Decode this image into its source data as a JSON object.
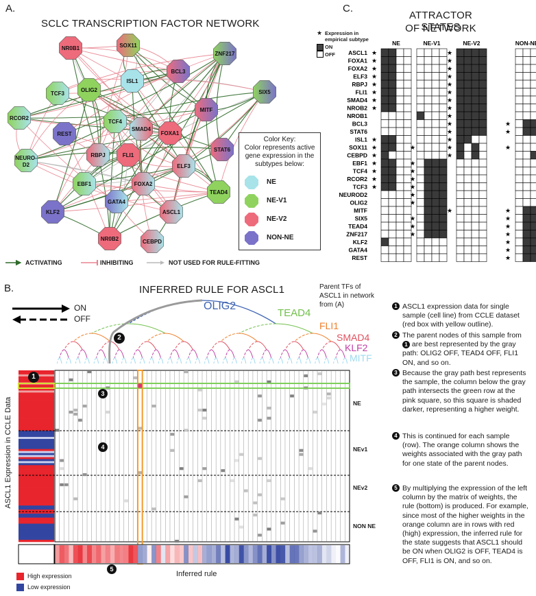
{
  "panelA": {
    "letter": "A.",
    "title": "SCLC TRANSCRIPTION FACTOR NETWORK",
    "colorKey": {
      "heading": "Color Key:",
      "description": "Color represents active gene expression in the subtypes below:",
      "entries": [
        {
          "label": "NE",
          "color": "#a8e3ea"
        },
        {
          "label": "NE-V1",
          "color": "#8fd35e"
        },
        {
          "label": "NE-V2",
          "color": "#ee6b7c"
        },
        {
          "label": "NON-NE",
          "color": "#7b73c9"
        }
      ]
    },
    "legend": {
      "activating": "ACTIVATING",
      "inhibiting": "INHIBITING",
      "unused": "NOT USED FOR RULE-FITTING"
    },
    "nodes": [
      "NR0B1",
      "SOX11",
      "ZNF217",
      "BCL3",
      "ISL1",
      "TCF3",
      "OLIG2",
      "SIX5",
      "RCOR2",
      "MITF",
      "REST",
      "TCF4",
      "SMAD4",
      "FOXA1",
      "STAT6",
      "NEURO-D2",
      "RBPJ",
      "FLI1",
      "ELF3",
      "EBF1",
      "FOXA2",
      "TEAD4",
      "GATA4",
      "ASCL1",
      "KLF2",
      "NR0B2",
      "CEBPD"
    ],
    "colors": {
      "activating": "#2f6b2a",
      "inhibiting": "#e8838f",
      "unused": "#b9b9b9"
    }
  },
  "panelC": {
    "letter": "C.",
    "title_line1": "ATTRACTOR STATES",
    "title_line2": "OF NETWORK",
    "legend": {
      "star_label": "Expression in empirical subtype",
      "on": "ON",
      "off": "OFF"
    },
    "columns": [
      "NE",
      "NE-V1",
      "NE-V2",
      "NON-NE"
    ],
    "genes": [
      "ASCL1",
      "FOXA1",
      "FOXA2",
      "ELF3",
      "RBPJ",
      "FLI1",
      "SMAD4",
      "NROB2",
      "NROB1",
      "BCL3",
      "STAT6",
      "ISL1",
      "SOX11",
      "CEBPD",
      "EBF1",
      "TCF4",
      "RCOR2",
      "TCF3",
      "NEUROD2",
      "OLIG2",
      "MITF",
      "SIX5",
      "TEAD4",
      "ZNF217",
      "KLF2",
      "GATA4",
      "REST"
    ],
    "stars": {
      "NE": [
        "ASCL1",
        "FOXA1",
        "FOXA2",
        "ELF3",
        "RBPJ",
        "FLI1",
        "SMAD4",
        "NROB2",
        "ISL1",
        "SOX11",
        "CEBPD",
        "EBF1",
        "TCF4",
        "RCOR2",
        "TCF3"
      ],
      "NE-V1": [
        "SOX11",
        "EBF1",
        "TCF4",
        "RCOR2",
        "TCF3",
        "NEUROD2",
        "OLIG2",
        "SIX5",
        "TEAD4",
        "ZNF217"
      ],
      "NE-V2": [
        "ASCL1",
        "FOXA1",
        "FOXA2",
        "ELF3",
        "RBPJ",
        "FLI1",
        "SMAD4",
        "NROB2",
        "NROB1",
        "BCL3",
        "STAT6",
        "ISL1",
        "SOX11",
        "CEBPD",
        "MITF"
      ],
      "NON-NE": [
        "BCL3",
        "STAT6",
        "SOX11",
        "MITF",
        "SIX5",
        "TEAD4",
        "ZNF217",
        "KLF2",
        "GATA4",
        "REST"
      ]
    },
    "states": {
      "NE": [
        [
          1,
          1,
          0,
          0
        ],
        [
          1,
          1,
          0,
          0
        ],
        [
          1,
          1,
          0,
          0
        ],
        [
          1,
          1,
          0,
          0
        ],
        [
          1,
          1,
          0,
          0
        ],
        [
          1,
          1,
          0,
          0
        ],
        [
          1,
          1,
          0,
          0
        ],
        [
          1,
          1,
          0,
          0
        ],
        [
          0,
          0,
          0,
          0
        ],
        [
          0,
          0,
          0,
          0
        ],
        [
          0,
          0,
          0,
          0
        ],
        [
          1,
          1,
          0,
          0
        ],
        [
          1,
          1,
          0,
          0
        ],
        [
          1,
          0,
          0,
          0
        ],
        [
          1,
          1,
          0,
          0
        ],
        [
          1,
          1,
          0,
          0
        ],
        [
          1,
          1,
          0,
          0
        ],
        [
          1,
          1,
          0,
          0
        ],
        [
          0,
          0,
          0,
          0
        ],
        [
          0,
          0,
          0,
          0
        ],
        [
          0,
          0,
          0,
          0
        ],
        [
          0,
          0,
          0,
          0
        ],
        [
          0,
          0,
          0,
          0
        ],
        [
          0,
          0,
          0,
          0
        ],
        [
          1,
          0,
          0,
          0
        ],
        [
          0,
          0,
          0,
          0
        ],
        [
          0,
          0,
          0,
          0
        ]
      ],
      "NE-V1": [
        [
          0,
          0,
          0,
          0
        ],
        [
          0,
          0,
          0,
          0
        ],
        [
          0,
          0,
          0,
          0
        ],
        [
          0,
          0,
          0,
          0
        ],
        [
          0,
          0,
          0,
          0
        ],
        [
          0,
          0,
          0,
          0
        ],
        [
          0,
          0,
          0,
          0
        ],
        [
          0,
          0,
          0,
          0
        ],
        [
          1,
          0,
          0,
          0
        ],
        [
          0,
          0,
          0,
          0
        ],
        [
          0,
          0,
          0,
          0
        ],
        [
          0,
          0,
          0,
          0
        ],
        [
          0,
          0,
          0,
          0
        ],
        [
          0,
          0,
          0,
          0
        ],
        [
          0,
          1,
          1,
          1
        ],
        [
          0,
          1,
          1,
          1
        ],
        [
          0,
          1,
          1,
          1
        ],
        [
          0,
          1,
          1,
          1
        ],
        [
          0,
          1,
          1,
          1
        ],
        [
          0,
          1,
          1,
          1
        ],
        [
          0,
          1,
          1,
          1
        ],
        [
          0,
          1,
          1,
          1
        ],
        [
          0,
          1,
          1,
          1
        ],
        [
          0,
          1,
          1,
          1
        ],
        [
          0,
          0,
          0,
          0
        ],
        [
          0,
          0,
          0,
          0
        ],
        [
          0,
          0,
          0,
          0
        ]
      ],
      "NE-V2": [
        [
          1,
          1,
          1,
          1
        ],
        [
          1,
          1,
          1,
          1
        ],
        [
          1,
          1,
          1,
          1
        ],
        [
          1,
          1,
          1,
          1
        ],
        [
          1,
          1,
          1,
          1
        ],
        [
          1,
          1,
          1,
          1
        ],
        [
          1,
          1,
          1,
          1
        ],
        [
          1,
          1,
          1,
          1
        ],
        [
          1,
          1,
          1,
          1
        ],
        [
          1,
          1,
          1,
          1
        ],
        [
          1,
          1,
          1,
          1
        ],
        [
          1,
          1,
          0,
          0
        ],
        [
          1,
          0,
          1,
          0
        ],
        [
          1,
          0,
          1,
          0
        ],
        [
          0,
          0,
          0,
          0
        ],
        [
          0,
          0,
          0,
          0
        ],
        [
          0,
          0,
          0,
          0
        ],
        [
          0,
          0,
          0,
          0
        ],
        [
          0,
          0,
          0,
          0
        ],
        [
          0,
          0,
          0,
          0
        ],
        [
          0,
          0,
          0,
          0
        ],
        [
          0,
          0,
          0,
          0
        ],
        [
          0,
          0,
          0,
          0
        ],
        [
          0,
          0,
          0,
          0
        ],
        [
          0,
          0,
          0,
          0
        ],
        [
          0,
          0,
          0,
          0
        ],
        [
          0,
          0,
          0,
          0
        ]
      ],
      "NON-NE": [
        [
          0,
          0,
          0
        ],
        [
          0,
          0,
          0
        ],
        [
          0,
          0,
          0
        ],
        [
          0,
          0,
          0
        ],
        [
          0,
          0,
          0
        ],
        [
          0,
          0,
          0
        ],
        [
          0,
          0,
          0
        ],
        [
          0,
          0,
          0
        ],
        [
          0,
          0,
          0
        ],
        [
          0,
          1,
          1
        ],
        [
          0,
          1,
          1
        ],
        [
          0,
          0,
          0
        ],
        [
          0,
          0,
          0
        ],
        [
          0,
          0,
          1
        ],
        [
          0,
          0,
          0
        ],
        [
          0,
          0,
          0
        ],
        [
          0,
          0,
          0
        ],
        [
          0,
          0,
          0
        ],
        [
          0,
          0,
          0
        ],
        [
          0,
          0,
          0
        ],
        [
          0,
          1,
          1
        ],
        [
          0,
          1,
          1
        ],
        [
          0,
          1,
          1
        ],
        [
          0,
          1,
          1
        ],
        [
          0,
          1,
          1
        ],
        [
          0,
          1,
          1
        ],
        [
          0,
          1,
          1
        ]
      ]
    }
  },
  "panelB": {
    "letter": "B.",
    "title": "INFERRED RULE FOR ASCL1",
    "parentNote": "Parent TFs of ASCL1 in network from (A)",
    "on": "ON",
    "off": "OFF",
    "treeLabels": [
      {
        "label": "OLIG2",
        "color": "#3d63b3"
      },
      {
        "label": "TEAD4",
        "color": "#72c04c"
      },
      {
        "label": "FLI1",
        "color": "#f07f2a"
      },
      {
        "label": "SMAD4",
        "color": "#e0505e"
      },
      {
        "label": "KLF2",
        "color": "#c03fa6"
      },
      {
        "label": "MITF",
        "color": "#9edaf0"
      }
    ],
    "yAxisLabel": "ASCL1 Expression in CCLE Data",
    "groups": [
      "NE",
      "NEv1",
      "NEv2",
      "NON NE"
    ],
    "inferredRule": "Inferred rule",
    "highExpression": "High expression",
    "lowExpression": "Low expression",
    "colors": {
      "high": "#e8242c",
      "low": "#3245a0"
    }
  },
  "notes": [
    {
      "num": "1",
      "text": "ASCL1 expression data for single sample (cell line) from CCLE dataset (red box with yellow outline)."
    },
    {
      "num": "2",
      "text_a": "The parent nodes of this sample from",
      "inline_num": "1",
      "text_b": "are best represented by the gray path: OLIG2 OFF, TEAD4 OFF, FLI1 ON, and so on."
    },
    {
      "num": "3",
      "text": "Because the gray path best represents the sample, the column below the gray path intersects the green row at the pink square, so this square is shaded darker, representing a higher weight."
    },
    {
      "num": "4",
      "text": "This is continued for each sample (row). The orange column shows the weights associated with the gray path for one state of the parent nodes."
    },
    {
      "num": "5",
      "text": "By multiplying the expression of the left column by the matrix of weights, the rule (bottom) is produced. For example, since most of the higher weights in the orange column are in rows with red (high) expression, the inferred rule for the state suggests that ASCL1 should be ON when OLIG2 is OFF, TEAD4 is OFF, FLI1 is ON, and so on."
    }
  ],
  "markers": [
    "1",
    "2",
    "3",
    "4",
    "5"
  ]
}
